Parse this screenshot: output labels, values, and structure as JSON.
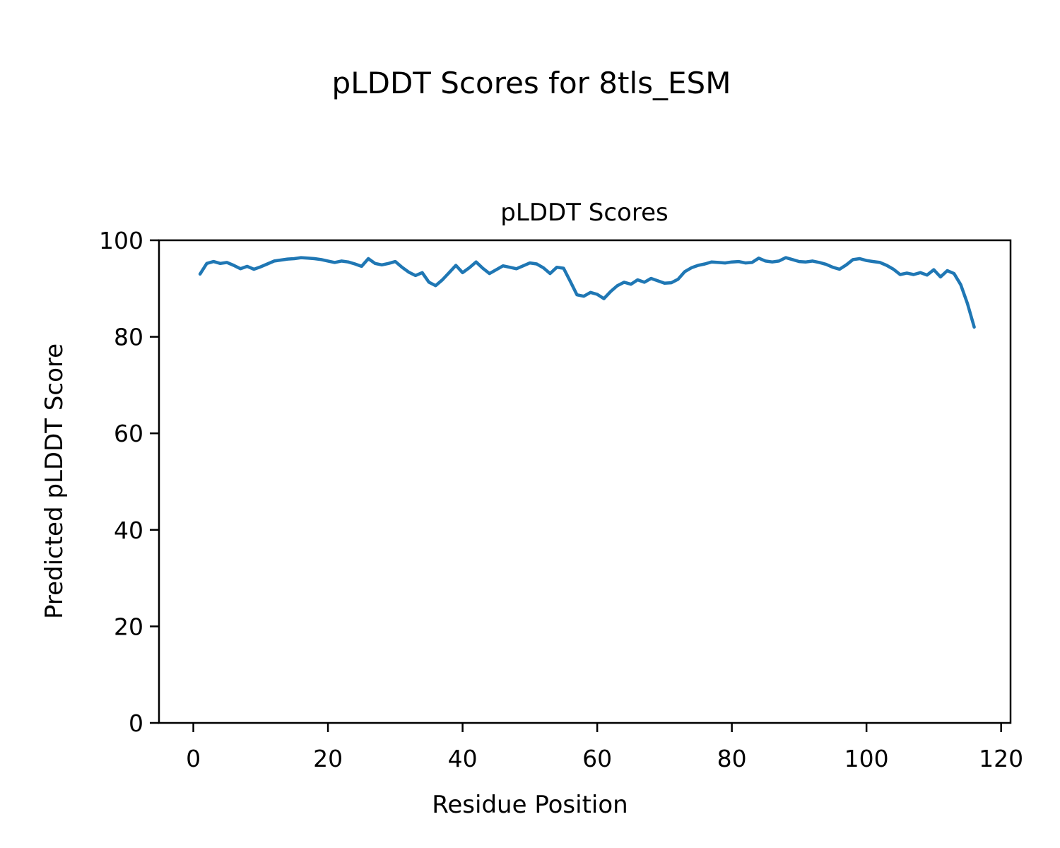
{
  "figure": {
    "title": "pLDDT Scores for 8tls_ESM",
    "background_color": "#ffffff"
  },
  "chart_data": {
    "type": "line",
    "title": "pLDDT Scores",
    "xlabel": "Residue Position",
    "ylabel": "Predicted pLDDT Score",
    "xlim": [
      -5.1,
      121.4
    ],
    "ylim": [
      0,
      100
    ],
    "xticks": [
      0,
      20,
      40,
      60,
      80,
      100,
      120
    ],
    "yticks": [
      0,
      20,
      40,
      60,
      80,
      100
    ],
    "grid": false,
    "legend": "none",
    "line_color": "#1f77b4",
    "axis_color": "#000000",
    "series": [
      {
        "name": "pLDDT",
        "x_start": 1,
        "x_step": 1,
        "y": [
          93.0,
          95.2,
          95.6,
          95.2,
          95.4,
          94.8,
          94.1,
          94.6,
          94.0,
          94.5,
          95.1,
          95.7,
          95.9,
          96.1,
          96.2,
          96.4,
          96.3,
          96.2,
          96.0,
          95.7,
          95.4,
          95.7,
          95.5,
          95.1,
          94.6,
          96.2,
          95.2,
          94.9,
          95.2,
          95.6,
          94.4,
          93.4,
          92.7,
          93.3,
          91.3,
          90.6,
          91.8,
          93.3,
          94.8,
          93.3,
          94.3,
          95.5,
          94.2,
          93.1,
          93.9,
          94.7,
          94.4,
          94.1,
          94.7,
          95.3,
          95.1,
          94.3,
          93.1,
          94.4,
          94.2,
          91.5,
          88.7,
          88.4,
          89.2,
          88.8,
          87.9,
          89.4,
          90.6,
          91.3,
          90.9,
          91.8,
          91.3,
          92.1,
          91.6,
          91.1,
          91.2,
          91.9,
          93.5,
          94.3,
          94.8,
          95.1,
          95.5,
          95.4,
          95.3,
          95.5,
          95.6,
          95.3,
          95.4,
          96.3,
          95.7,
          95.5,
          95.7,
          96.4,
          96.0,
          95.6,
          95.5,
          95.7,
          95.4,
          95.0,
          94.4,
          94.0,
          94.9,
          96.0,
          96.2,
          95.8,
          95.6,
          95.4,
          94.8,
          94.0,
          92.9,
          93.2,
          92.9,
          93.3,
          92.8,
          93.9,
          92.4,
          93.7,
          93.1,
          90.8,
          86.9,
          82.0
        ]
      }
    ]
  }
}
